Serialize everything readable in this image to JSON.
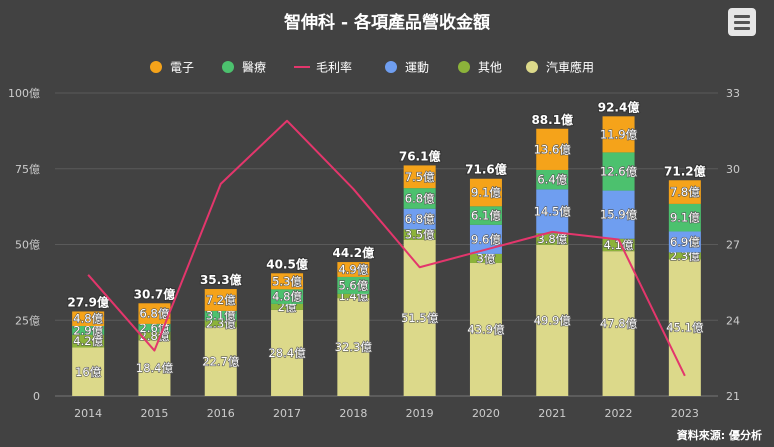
{
  "header": {
    "title": "智伸科 - 各項產品營收金額",
    "menu_icon": "hamburger-menu-icon"
  },
  "footer": {
    "source": "資料來源: 優分析"
  },
  "colors": {
    "電子": "#f5a31a",
    "醫療": "#4cc16e",
    "毛利率": "#e3366c",
    "運動": "#6f9ef0",
    "其他": "#8cb33a",
    "汽車應用": "#dcd98a"
  },
  "chart_data": {
    "type": "bar",
    "stacked": true,
    "categories": [
      "2014",
      "2015",
      "2016",
      "2017",
      "2018",
      "2019",
      "2020",
      "2021",
      "2022",
      "2023"
    ],
    "legend": [
      "電子",
      "醫療",
      "毛利率",
      "運動",
      "其他",
      "汽車應用"
    ],
    "legend_position": "top",
    "series": [
      {
        "name": "汽車應用",
        "type": "bar",
        "values": [
          16,
          18.4,
          22.7,
          28.4,
          32.3,
          51.5,
          43.9,
          49.9,
          47.8,
          45.1
        ]
      },
      {
        "name": "其他",
        "type": "bar",
        "values": [
          4.2,
          2.8,
          2.3,
          2,
          1.4,
          3.5,
          3,
          3.8,
          4.1,
          2.3
        ]
      },
      {
        "name": "運動",
        "type": "bar",
        "values": [
          0,
          0,
          0,
          0,
          0,
          6.8,
          9.6,
          14.5,
          15.9,
          6.9
        ]
      },
      {
        "name": "醫療",
        "type": "bar",
        "values": [
          2.9,
          2.6,
          3.1,
          4.8,
          5.6,
          6.8,
          6.1,
          6.4,
          12.6,
          9.1
        ]
      },
      {
        "name": "電子",
        "type": "bar",
        "values": [
          4.8,
          6.8,
          7.2,
          5.3,
          4.9,
          7.5,
          9.1,
          13.6,
          11.9,
          7.8
        ]
      },
      {
        "name": "毛利率",
        "type": "line",
        "axis": "right",
        "values": [
          25.8,
          22.8,
          29.4,
          31.9,
          29.2,
          26.1,
          26.8,
          27.5,
          27.2,
          21.8
        ]
      }
    ],
    "totals": [
      27.9,
      30.7,
      35.3,
      40.5,
      44.2,
      76.1,
      71.6,
      88.1,
      92.4,
      71.2
    ],
    "label_suffix": "億",
    "left_axis": {
      "ylim": [
        0,
        100
      ],
      "ticks": [
        "0",
        "25億",
        "50億",
        "75億",
        "100億"
      ]
    },
    "right_axis": {
      "ylim": [
        21,
        33
      ],
      "ticks": [
        "21",
        "24",
        "27",
        "30",
        "33"
      ]
    },
    "grid": true
  }
}
